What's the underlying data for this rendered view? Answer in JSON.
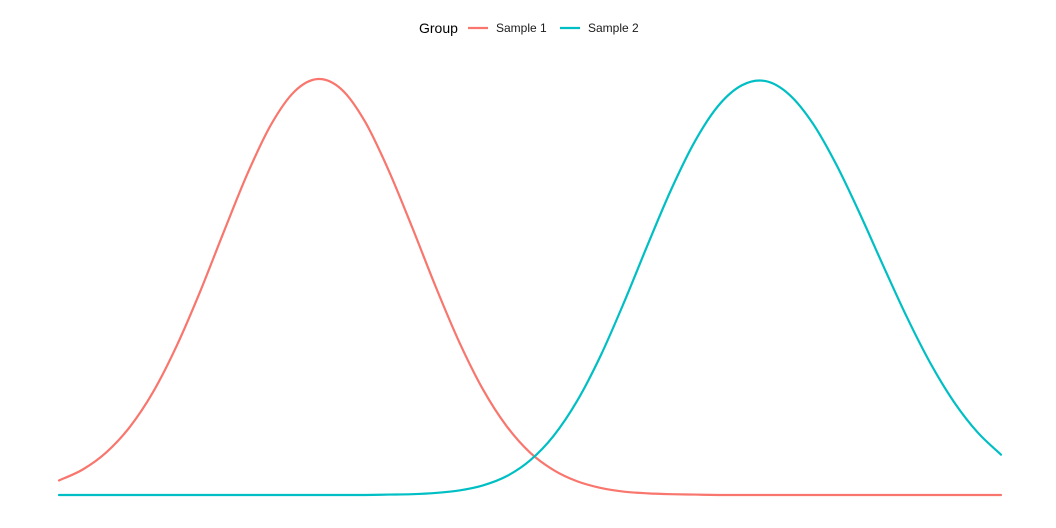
{
  "chart_data": {
    "type": "line",
    "title": "",
    "xlabel": "",
    "ylabel": "",
    "grid": false,
    "axes_visible": false,
    "legend": {
      "title": "Group",
      "placement": "top"
    },
    "xlim": [
      0,
      10
    ],
    "ylim": [
      0,
      1
    ],
    "series": [
      {
        "name": "Sample 1",
        "color": "#F8766D",
        "x": [
          0,
          0.25,
          0.5,
          0.75,
          1,
          1.25,
          1.5,
          1.75,
          2,
          2.25,
          2.5,
          2.75,
          3,
          3.25,
          3.5,
          3.75,
          4,
          4.25,
          4.5,
          4.75,
          5,
          5.25,
          5.5,
          5.75,
          6,
          6.25,
          6.5,
          6.75,
          7,
          7.25,
          7.5,
          7.75,
          8,
          8.25,
          8.5,
          8.75,
          9,
          9.25,
          9.5,
          9.75,
          10
        ],
        "y": [
          0.035,
          0.061,
          0.102,
          0.163,
          0.248,
          0.359,
          0.49,
          0.633,
          0.772,
          0.89,
          0.97,
          1.0,
          0.975,
          0.897,
          0.78,
          0.643,
          0.5,
          0.367,
          0.254,
          0.166,
          0.102,
          0.06,
          0.033,
          0.017,
          0.008,
          0.004,
          0.002,
          0.001,
          0.0,
          0.0,
          0.0,
          0.0,
          0.0,
          0.0,
          0.0,
          0.0,
          0.0,
          0.0,
          0.0,
          0.0,
          0.0
        ]
      },
      {
        "name": "Sample 2",
        "color": "#00BFC4",
        "x": [
          0,
          0.25,
          0.5,
          0.75,
          1,
          1.25,
          1.5,
          1.75,
          2,
          2.25,
          2.5,
          2.75,
          3,
          3.25,
          3.5,
          3.75,
          4,
          4.25,
          4.5,
          4.75,
          5,
          5.25,
          5.5,
          5.75,
          6,
          6.25,
          6.5,
          6.75,
          7,
          7.25,
          7.5,
          7.75,
          8,
          8.25,
          8.5,
          8.75,
          9,
          9.25,
          9.5,
          9.75,
          10
        ],
        "y": [
          0.0,
          0.0,
          0.0,
          0.0,
          0.0,
          0.0,
          0.0,
          0.0,
          0.0,
          0.0,
          0.0,
          0.0,
          0.0,
          0.0,
          0.001,
          0.002,
          0.005,
          0.011,
          0.023,
          0.045,
          0.083,
          0.142,
          0.226,
          0.335,
          0.464,
          0.602,
          0.735,
          0.85,
          0.936,
          0.985,
          0.995,
          0.963,
          0.894,
          0.795,
          0.677,
          0.551,
          0.428,
          0.317,
          0.224,
          0.151,
          0.097
        ]
      }
    ]
  }
}
